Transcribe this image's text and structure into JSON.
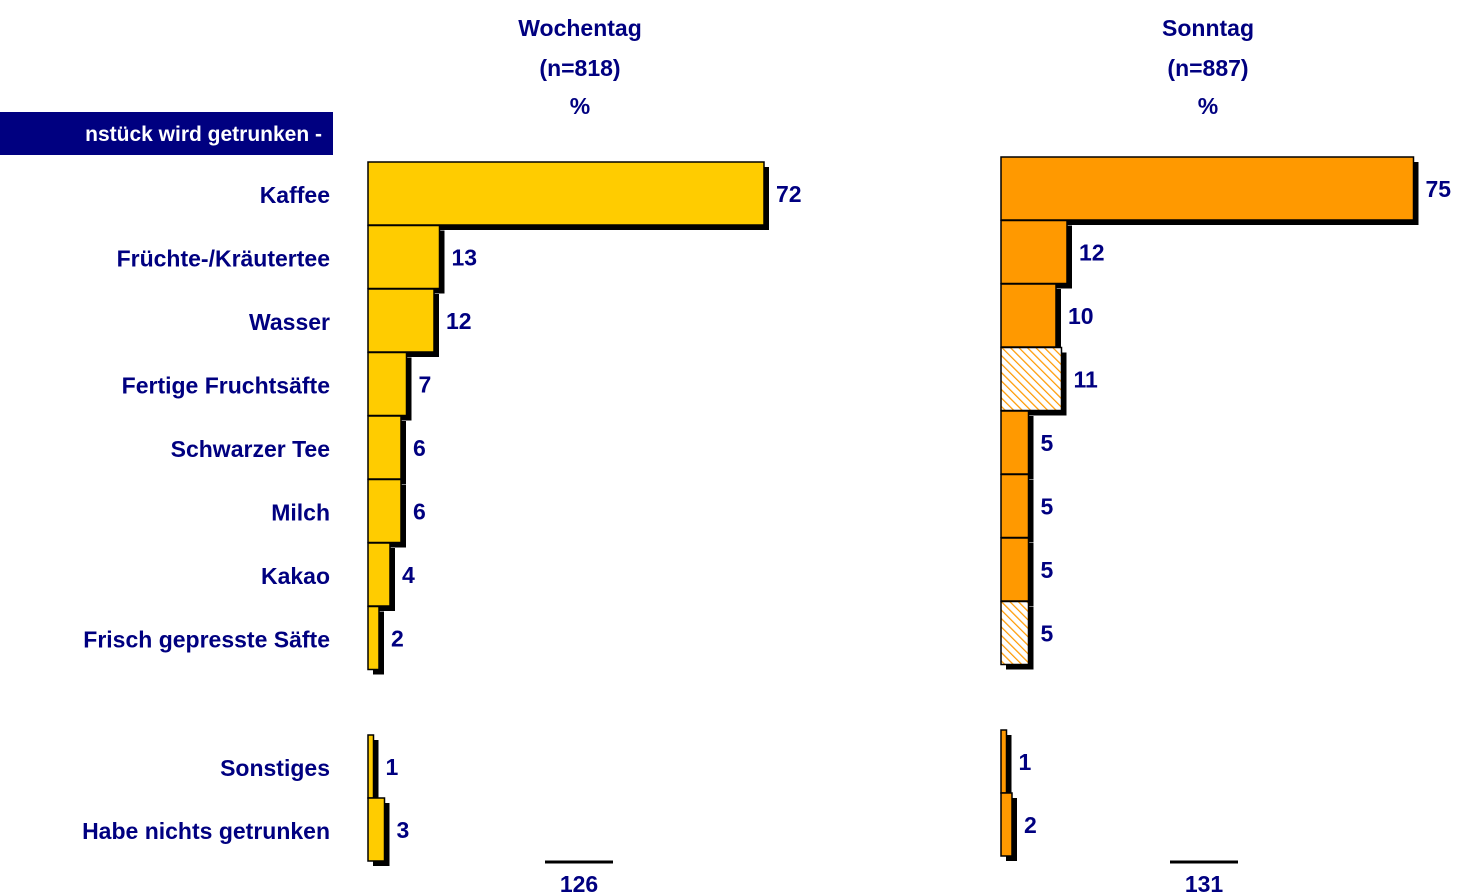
{
  "header": "nstück wird getrunken -",
  "chart_data": [
    {
      "type": "bar",
      "orientation": "horizontal",
      "title": "Wochentag",
      "subtitle": "(n=818)",
      "unit_label": "%",
      "categories": [
        "Kaffee",
        "Früchte-/Kräutertee",
        "Wasser",
        "Fertige Fruchtsäfte",
        "Schwarzer Tee",
        "Milch",
        "Kakao",
        "Frisch gepresste Säfte",
        "Sonstiges",
        "Habe nichts getrunken"
      ],
      "values": [
        72,
        13,
        12,
        7,
        6,
        6,
        4,
        2,
        1,
        3
      ],
      "color": "#ffcc00",
      "total": 126
    },
    {
      "type": "bar",
      "orientation": "horizontal",
      "title": "Sonntag",
      "subtitle": "(n=887)",
      "unit_label": "%",
      "values": [
        75,
        12,
        10,
        11,
        5,
        5,
        5,
        5,
        1,
        2
      ],
      "color": "#ff9900",
      "hatched": [
        false,
        false,
        false,
        true,
        false,
        false,
        false,
        true,
        false,
        false
      ],
      "total": 131
    }
  ]
}
